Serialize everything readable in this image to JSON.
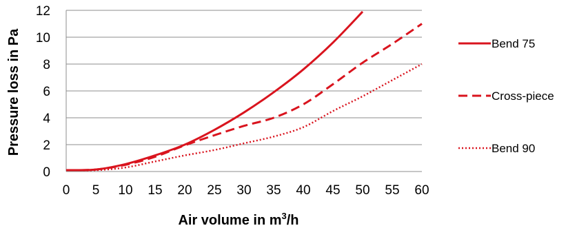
{
  "chart_data": {
    "type": "line",
    "title": "",
    "xlabel": "Air volume in m",
    "xlabel_sup": "3",
    "xlabel_suffix": "/h",
    "ylabel": "Pressure loss in Pa",
    "xlim": [
      0,
      60
    ],
    "ylim": [
      0,
      12
    ],
    "x_ticks": [
      0,
      5,
      10,
      15,
      20,
      25,
      30,
      35,
      40,
      45,
      50,
      55,
      60
    ],
    "y_ticks": [
      0,
      2,
      4,
      6,
      8,
      10,
      12
    ],
    "grid": "horizontal",
    "legend_position": "right",
    "x": [
      0,
      5,
      10,
      15,
      20,
      25,
      30,
      35,
      40,
      45,
      50,
      55,
      60
    ],
    "series": [
      {
        "name": "Bend 75",
        "style": "solid",
        "color": "#d9141e",
        "values": [
          0.1,
          0.15,
          0.55,
          1.2,
          2.0,
          3.1,
          4.4,
          5.9,
          7.6,
          9.6,
          11.9,
          null,
          null
        ]
      },
      {
        "name": "Cross-piece",
        "style": "dashed",
        "color": "#d9141e",
        "values": [
          0.1,
          0.15,
          0.5,
          1.1,
          1.95,
          2.7,
          3.4,
          4.0,
          5.0,
          6.5,
          8.1,
          9.5,
          11.0
        ]
      },
      {
        "name": "Bend 90",
        "style": "dotted",
        "color": "#d9141e",
        "values": [
          0.1,
          0.1,
          0.3,
          0.75,
          1.2,
          1.6,
          2.1,
          2.6,
          3.3,
          4.5,
          5.6,
          6.8,
          8.0
        ]
      }
    ]
  }
}
